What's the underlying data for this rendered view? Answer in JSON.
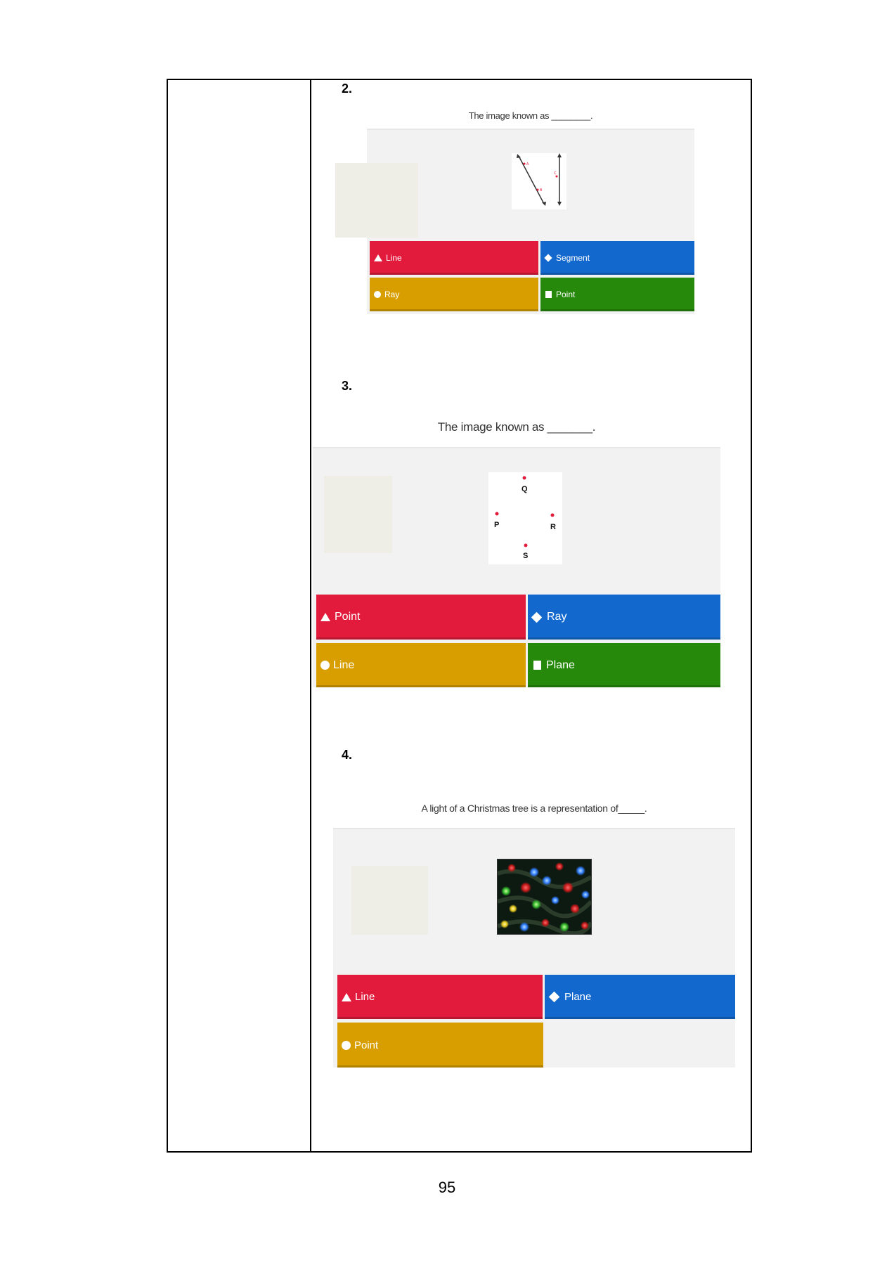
{
  "page": {
    "number": "95"
  },
  "questions": [
    {
      "number": "2.",
      "prompt": "The image known as ________.",
      "point_labels": [
        "A",
        "B",
        "C"
      ],
      "answers": [
        {
          "label": "Line",
          "shape": "triangle",
          "color": "#e21b3c"
        },
        {
          "label": "Segment",
          "shape": "diamond",
          "color": "#1368ce"
        },
        {
          "label": "Ray",
          "shape": "circle",
          "color": "#d89e00"
        },
        {
          "label": "Point",
          "shape": "square",
          "color": "#26890c"
        }
      ]
    },
    {
      "number": "3.",
      "prompt": "The image known as _______.",
      "point_labels": [
        "Q",
        "P",
        "R",
        "S"
      ],
      "answers": [
        {
          "label": "Point",
          "shape": "triangle",
          "color": "#e21b3c"
        },
        {
          "label": "Ray",
          "shape": "diamond",
          "color": "#1368ce"
        },
        {
          "label": "Line",
          "shape": "circle",
          "color": "#d89e00"
        },
        {
          "label": "Plane",
          "shape": "square",
          "color": "#26890c"
        }
      ]
    },
    {
      "number": "4.",
      "prompt": "A light of a Christmas tree is a representation of_____.",
      "answers": [
        {
          "label": "Line",
          "shape": "triangle",
          "color": "#e21b3c"
        },
        {
          "label": "Plane",
          "shape": "diamond",
          "color": "#1368ce"
        },
        {
          "label": "Point",
          "shape": "circle",
          "color": "#d89e00"
        }
      ]
    }
  ]
}
